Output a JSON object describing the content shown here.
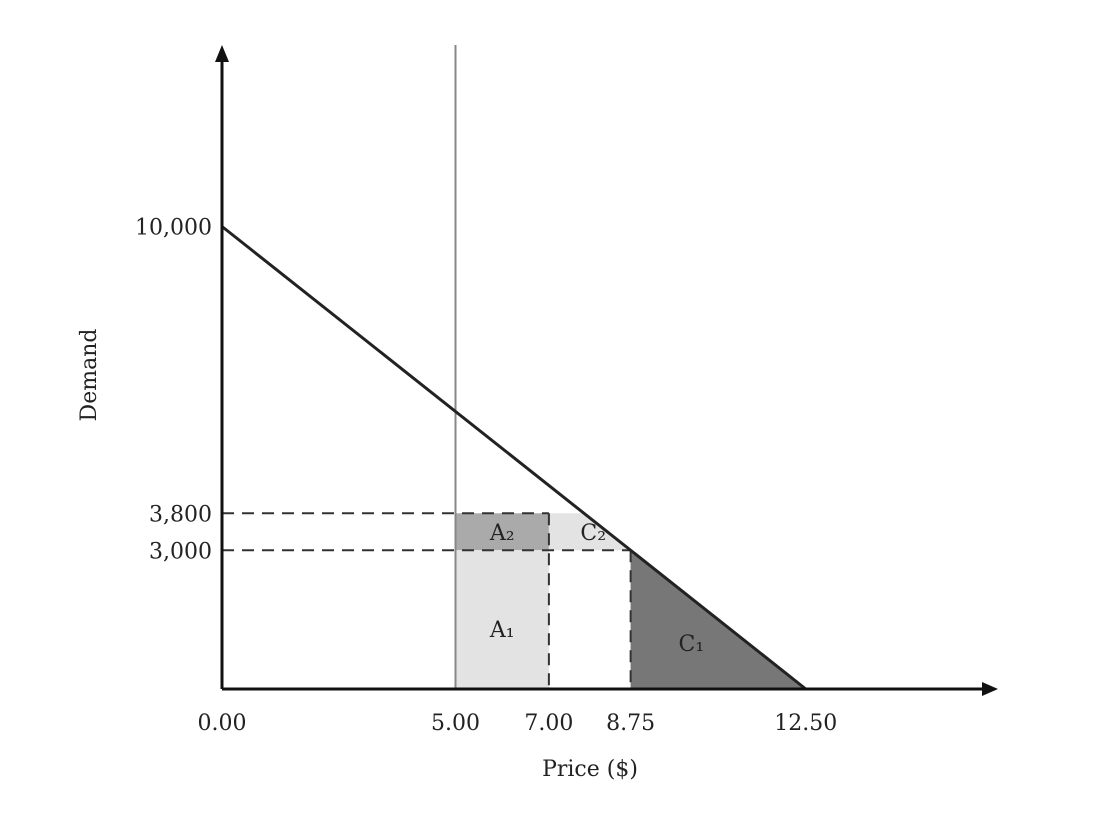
{
  "chart_data": {
    "type": "line",
    "title": "",
    "xlabel": "Price ($)",
    "ylabel": "Demand",
    "xlim": [
      0,
      17.5
    ],
    "ylim": [
      0,
      14000
    ],
    "demand_line": {
      "x": [
        0,
        5.0,
        7.0,
        8.75,
        12.5
      ],
      "y": [
        10000,
        6000,
        3800,
        3000,
        0
      ]
    },
    "x_ticks": [
      {
        "value": 0.0,
        "label": "0.00"
      },
      {
        "value": 5.0,
        "label": "5.00"
      },
      {
        "value": 7.0,
        "label": "7.00"
      },
      {
        "value": 8.75,
        "label": "8.75"
      },
      {
        "value": 12.5,
        "label": "12.50"
      }
    ],
    "y_ticks": [
      {
        "value": 10000,
        "label": "10,000"
      },
      {
        "value": 3800,
        "label": "3,800"
      },
      {
        "value": 3000,
        "label": "3,000"
      }
    ],
    "regions": [
      {
        "label": "A₂",
        "x": [
          5.0,
          7.0
        ],
        "y": [
          3000,
          3800
        ],
        "color": "#aaaaaa"
      },
      {
        "label": "C₂",
        "x": [
          7.0,
          8.75
        ],
        "y": [
          3000,
          3800
        ],
        "color": "#e3e3e3"
      },
      {
        "label": "A₁",
        "x": [
          5.0,
          7.0
        ],
        "y": [
          0,
          3000
        ],
        "color": "#e3e3e3"
      },
      {
        "label": "C₁",
        "x": [
          8.75,
          12.5
        ],
        "y": [
          0,
          3000
        ],
        "color": "#777777"
      }
    ],
    "vertical_line_x": 5.0,
    "grid": false,
    "legend": "none",
    "colors": {
      "axis": "#111111",
      "demand_line": "#222222",
      "dashed": "#333333",
      "vline": "#888888",
      "light_fill": "#e3e3e3",
      "medium_fill": "#aaaaaa",
      "dark_fill": "#777777"
    }
  }
}
